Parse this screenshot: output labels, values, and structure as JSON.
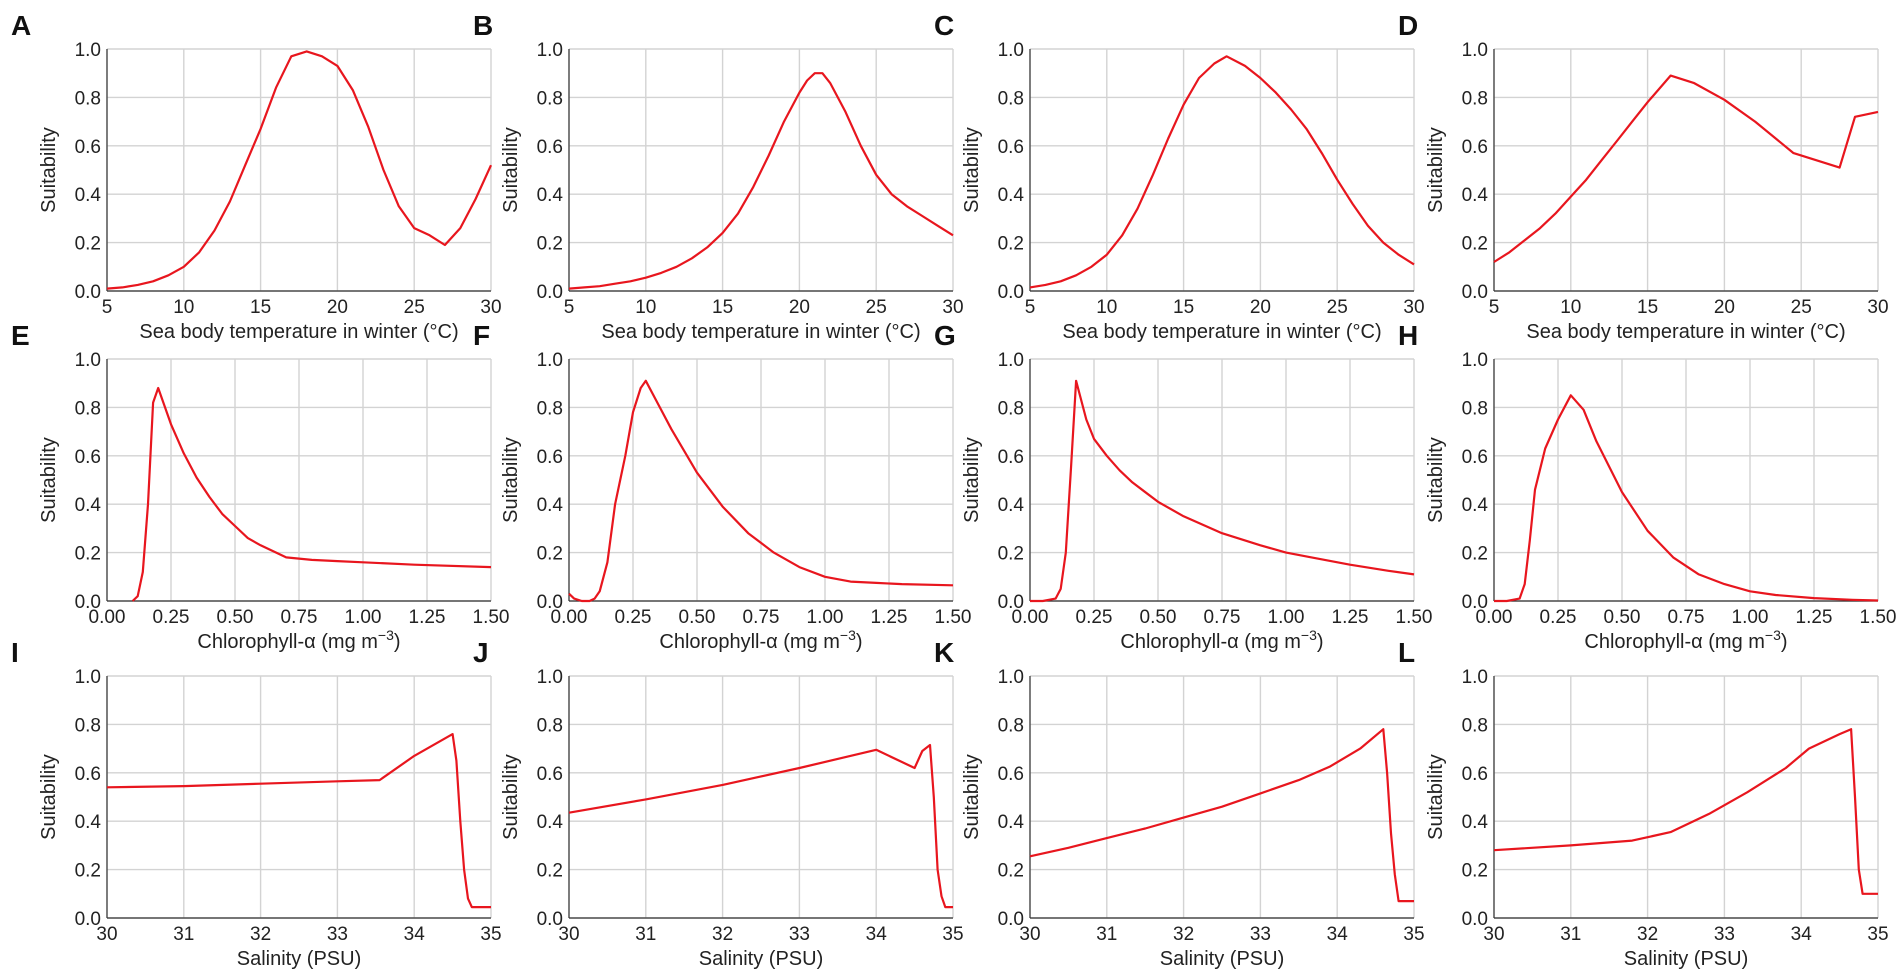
{
  "colors": {
    "curve": "#e8161e",
    "grid": "#d3d3d3",
    "axis": "#333333",
    "text": "#222222"
  },
  "chart_data": [
    {
      "panel": "A",
      "type": "line",
      "xlabel": "Sea body temperature in winter (°C)",
      "ylabel": "Suitability",
      "xlim": [
        5,
        30
      ],
      "ylim": [
        0,
        1
      ],
      "xticks": [
        5,
        10,
        15,
        20,
        25,
        30
      ],
      "xtick_labels": [
        "5",
        "10",
        "15",
        "20",
        "25",
        "30"
      ],
      "yticks": [
        0,
        0.2,
        0.4,
        0.6,
        0.8,
        1
      ],
      "ytick_labels": [
        "0.0",
        "0.2",
        "0.4",
        "0.6",
        "0.8",
        "1.0"
      ],
      "x": [
        5,
        6,
        7,
        8,
        9,
        10,
        11,
        12,
        13,
        14,
        15,
        16,
        17,
        18,
        19,
        20,
        21,
        22,
        23,
        24,
        25,
        26,
        27,
        28,
        29,
        30
      ],
      "y": [
        0.01,
        0.015,
        0.025,
        0.04,
        0.065,
        0.1,
        0.16,
        0.25,
        0.37,
        0.52,
        0.67,
        0.84,
        0.97,
        0.99,
        0.97,
        0.93,
        0.83,
        0.68,
        0.5,
        0.35,
        0.26,
        0.23,
        0.19,
        0.26,
        0.38,
        0.52
      ]
    },
    {
      "panel": "B",
      "type": "line",
      "xlabel": "Sea body temperature in winter (°C)",
      "ylabel": "Suitability",
      "xlim": [
        5,
        30
      ],
      "ylim": [
        0,
        1
      ],
      "xticks": [
        5,
        10,
        15,
        20,
        25,
        30
      ],
      "xtick_labels": [
        "5",
        "10",
        "15",
        "20",
        "25",
        "30"
      ],
      "yticks": [
        0,
        0.2,
        0.4,
        0.6,
        0.8,
        1
      ],
      "ytick_labels": [
        "0.0",
        "0.2",
        "0.4",
        "0.6",
        "0.8",
        "1.0"
      ],
      "x": [
        5,
        6,
        7,
        8,
        9,
        10,
        11,
        12,
        13,
        14,
        15,
        16,
        17,
        18,
        19,
        20,
        20.5,
        21,
        21.5,
        22,
        23,
        24,
        25,
        26,
        27,
        28,
        29,
        30
      ],
      "y": [
        0.01,
        0.015,
        0.02,
        0.03,
        0.04,
        0.055,
        0.075,
        0.1,
        0.135,
        0.18,
        0.24,
        0.32,
        0.43,
        0.56,
        0.7,
        0.82,
        0.87,
        0.9,
        0.9,
        0.86,
        0.74,
        0.6,
        0.48,
        0.4,
        0.35,
        0.31,
        0.27,
        0.23
      ]
    },
    {
      "panel": "C",
      "type": "line",
      "xlabel": "Sea body temperature in winter (°C)",
      "ylabel": "Suitability",
      "xlim": [
        5,
        30
      ],
      "ylim": [
        0,
        1
      ],
      "xticks": [
        5,
        10,
        15,
        20,
        25,
        30
      ],
      "xtick_labels": [
        "5",
        "10",
        "15",
        "20",
        "25",
        "30"
      ],
      "yticks": [
        0,
        0.2,
        0.4,
        0.6,
        0.8,
        1
      ],
      "ytick_labels": [
        "0.0",
        "0.2",
        "0.4",
        "0.6",
        "0.8",
        "1.0"
      ],
      "x": [
        5,
        6,
        7,
        8,
        9,
        10,
        11,
        12,
        13,
        14,
        15,
        16,
        17,
        17.8,
        19,
        20,
        21,
        22,
        23,
        24,
        25,
        26,
        27,
        28,
        29,
        30
      ],
      "y": [
        0.015,
        0.025,
        0.04,
        0.065,
        0.1,
        0.15,
        0.23,
        0.34,
        0.48,
        0.63,
        0.77,
        0.88,
        0.94,
        0.97,
        0.93,
        0.88,
        0.82,
        0.75,
        0.67,
        0.57,
        0.46,
        0.36,
        0.27,
        0.2,
        0.15,
        0.11
      ]
    },
    {
      "panel": "D",
      "type": "line",
      "xlabel": "Sea body temperature in winter (°C)",
      "ylabel": "Suitability",
      "xlim": [
        5,
        30
      ],
      "ylim": [
        0,
        1
      ],
      "xticks": [
        5,
        10,
        15,
        20,
        25,
        30
      ],
      "xtick_labels": [
        "5",
        "10",
        "15",
        "20",
        "25",
        "30"
      ],
      "yticks": [
        0,
        0.2,
        0.4,
        0.6,
        0.8,
        1
      ],
      "ytick_labels": [
        "0.0",
        "0.2",
        "0.4",
        "0.6",
        "0.8",
        "1.0"
      ],
      "x": [
        5,
        6,
        7,
        8,
        9,
        10,
        11,
        12,
        13,
        14,
        15,
        16.5,
        18,
        20,
        22,
        24.5,
        27.5,
        28.5,
        30
      ],
      "y": [
        0.12,
        0.16,
        0.21,
        0.26,
        0.32,
        0.39,
        0.46,
        0.54,
        0.62,
        0.7,
        0.78,
        0.89,
        0.86,
        0.79,
        0.7,
        0.57,
        0.51,
        0.72,
        0.74
      ]
    },
    {
      "panel": "E",
      "type": "line",
      "xlabel": "Chlorophyll-α (mg m",
      "xlabel_sup": "−3",
      "xlabel_tail": ")",
      "ylabel": "Suitability",
      "xlim": [
        0,
        1.5
      ],
      "ylim": [
        0,
        1
      ],
      "xticks": [
        0,
        0.25,
        0.5,
        0.75,
        1,
        1.25,
        1.5
      ],
      "xtick_labels": [
        "0.00",
        "0.25",
        "0.50",
        "0.75",
        "1.00",
        "1.25",
        "1.50"
      ],
      "yticks": [
        0,
        0.2,
        0.4,
        0.6,
        0.8,
        1
      ],
      "ytick_labels": [
        "0.0",
        "0.2",
        "0.4",
        "0.6",
        "0.8",
        "1.0"
      ],
      "x": [
        0.1,
        0.12,
        0.14,
        0.16,
        0.18,
        0.2,
        0.25,
        0.3,
        0.35,
        0.4,
        0.45,
        0.5,
        0.55,
        0.6,
        0.7,
        0.8,
        0.9,
        1.0,
        1.2,
        1.5
      ],
      "y": [
        0.0,
        0.02,
        0.12,
        0.4,
        0.82,
        0.88,
        0.73,
        0.61,
        0.51,
        0.43,
        0.36,
        0.31,
        0.26,
        0.23,
        0.18,
        0.17,
        0.165,
        0.16,
        0.15,
        0.14
      ]
    },
    {
      "panel": "F",
      "type": "line",
      "xlabel": "Chlorophyll-α (mg m",
      "xlabel_sup": "−3",
      "xlabel_tail": ")",
      "ylabel": "Suitability",
      "xlim": [
        0,
        1.5
      ],
      "ylim": [
        0,
        1
      ],
      "xticks": [
        0,
        0.25,
        0.5,
        0.75,
        1,
        1.25,
        1.5
      ],
      "xtick_labels": [
        "0.00",
        "0.25",
        "0.50",
        "0.75",
        "1.00",
        "1.25",
        "1.50"
      ],
      "yticks": [
        0,
        0.2,
        0.4,
        0.6,
        0.8,
        1
      ],
      "ytick_labels": [
        "0.0",
        "0.2",
        "0.4",
        "0.6",
        "0.8",
        "1.0"
      ],
      "x": [
        0,
        0.02,
        0.05,
        0.08,
        0.1,
        0.12,
        0.15,
        0.18,
        0.2,
        0.22,
        0.25,
        0.28,
        0.3,
        0.35,
        0.4,
        0.5,
        0.6,
        0.7,
        0.8,
        0.9,
        1.0,
        1.1,
        1.2,
        1.3,
        1.5
      ],
      "y": [
        0.03,
        0.01,
        0.0,
        0.0,
        0.01,
        0.04,
        0.16,
        0.4,
        0.5,
        0.6,
        0.78,
        0.88,
        0.91,
        0.81,
        0.71,
        0.53,
        0.39,
        0.28,
        0.2,
        0.14,
        0.1,
        0.08,
        0.075,
        0.07,
        0.065
      ]
    },
    {
      "panel": "G",
      "type": "line",
      "xlabel": "Chlorophyll-α (mg m",
      "xlabel_sup": "−3",
      "xlabel_tail": ")",
      "ylabel": "Suitability",
      "xlim": [
        0,
        1.5
      ],
      "ylim": [
        0,
        1
      ],
      "xticks": [
        0,
        0.25,
        0.5,
        0.75,
        1,
        1.25,
        1.5
      ],
      "xtick_labels": [
        "0.00",
        "0.25",
        "0.50",
        "0.75",
        "1.00",
        "1.25",
        "1.50"
      ],
      "yticks": [
        0,
        0.2,
        0.4,
        0.6,
        0.8,
        1
      ],
      "ytick_labels": [
        "0.0",
        "0.2",
        "0.4",
        "0.6",
        "0.8",
        "1.0"
      ],
      "x": [
        0,
        0.05,
        0.1,
        0.12,
        0.14,
        0.16,
        0.18,
        0.2,
        0.22,
        0.25,
        0.3,
        0.35,
        0.4,
        0.5,
        0.6,
        0.75,
        0.9,
        1.0,
        1.1,
        1.25,
        1.4,
        1.5
      ],
      "y": [
        0.0,
        0.0,
        0.01,
        0.05,
        0.2,
        0.55,
        0.91,
        0.83,
        0.75,
        0.67,
        0.6,
        0.54,
        0.49,
        0.41,
        0.35,
        0.28,
        0.23,
        0.2,
        0.18,
        0.15,
        0.125,
        0.11
      ]
    },
    {
      "panel": "H",
      "type": "line",
      "xlabel": "Chlorophyll-α (mg m",
      "xlabel_sup": "−3",
      "xlabel_tail": ")",
      "ylabel": "Suitability",
      "xlim": [
        0,
        1.5
      ],
      "ylim": [
        0,
        1
      ],
      "xticks": [
        0,
        0.25,
        0.5,
        0.75,
        1,
        1.25,
        1.5
      ],
      "xtick_labels": [
        "0.00",
        "0.25",
        "0.50",
        "0.75",
        "1.00",
        "1.25",
        "1.50"
      ],
      "yticks": [
        0,
        0.2,
        0.4,
        0.6,
        0.8,
        1
      ],
      "ytick_labels": [
        "0.0",
        "0.2",
        "0.4",
        "0.6",
        "0.8",
        "1.0"
      ],
      "x": [
        0,
        0.05,
        0.1,
        0.12,
        0.14,
        0.16,
        0.2,
        0.25,
        0.3,
        0.35,
        0.4,
        0.5,
        0.6,
        0.7,
        0.8,
        0.9,
        1.0,
        1.1,
        1.25,
        1.4,
        1.5
      ],
      "y": [
        0.0,
        0.0,
        0.01,
        0.07,
        0.25,
        0.46,
        0.63,
        0.75,
        0.85,
        0.79,
        0.66,
        0.45,
        0.29,
        0.18,
        0.11,
        0.07,
        0.04,
        0.025,
        0.012,
        0.005,
        0.002
      ]
    },
    {
      "panel": "I",
      "type": "line",
      "xlabel": "Salinity (PSU)",
      "ylabel": "Suitability",
      "xlim": [
        30,
        35
      ],
      "ylim": [
        0,
        1
      ],
      "xticks": [
        30,
        31,
        32,
        33,
        34,
        35
      ],
      "xtick_labels": [
        "30",
        "31",
        "32",
        "33",
        "34",
        "35"
      ],
      "yticks": [
        0,
        0.2,
        0.4,
        0.6,
        0.8,
        1
      ],
      "ytick_labels": [
        "0.0",
        "0.2",
        "0.4",
        "0.6",
        "0.8",
        "1.0"
      ],
      "x": [
        30,
        31,
        32,
        33,
        33.55,
        34,
        34.5,
        34.55,
        34.6,
        34.65,
        34.7,
        34.75,
        35
      ],
      "y": [
        0.54,
        0.545,
        0.555,
        0.565,
        0.57,
        0.67,
        0.76,
        0.65,
        0.4,
        0.2,
        0.08,
        0.045,
        0.045
      ]
    },
    {
      "panel": "J",
      "type": "line",
      "xlabel": "Salinity (PSU)",
      "ylabel": "Suitability",
      "xlim": [
        30,
        35
      ],
      "ylim": [
        0,
        1
      ],
      "xticks": [
        30,
        31,
        32,
        33,
        34,
        35
      ],
      "xtick_labels": [
        "30",
        "31",
        "32",
        "33",
        "34",
        "35"
      ],
      "yticks": [
        0,
        0.2,
        0.4,
        0.6,
        0.8,
        1
      ],
      "ytick_labels": [
        "0.0",
        "0.2",
        "0.4",
        "0.6",
        "0.8",
        "1.0"
      ],
      "x": [
        30,
        31,
        32,
        33,
        34,
        34.5,
        34.6,
        34.7,
        34.75,
        34.8,
        34.85,
        34.9,
        35
      ],
      "y": [
        0.435,
        0.49,
        0.55,
        0.62,
        0.695,
        0.62,
        0.69,
        0.715,
        0.5,
        0.2,
        0.09,
        0.045,
        0.045
      ]
    },
    {
      "panel": "K",
      "type": "line",
      "xlabel": "Salinity (PSU)",
      "ylabel": "Suitability",
      "xlim": [
        30,
        35
      ],
      "ylim": [
        0,
        1
      ],
      "xticks": [
        30,
        31,
        32,
        33,
        34,
        35
      ],
      "xtick_labels": [
        "30",
        "31",
        "32",
        "33",
        "34",
        "35"
      ],
      "yticks": [
        0,
        0.2,
        0.4,
        0.6,
        0.8,
        1
      ],
      "ytick_labels": [
        "0.0",
        "0.2",
        "0.4",
        "0.6",
        "0.8",
        "1.0"
      ],
      "x": [
        30,
        30.5,
        31,
        31.5,
        32,
        32.5,
        33,
        33.5,
        33.9,
        34.3,
        34.6,
        34.65,
        34.7,
        34.75,
        34.8,
        35
      ],
      "y": [
        0.255,
        0.29,
        0.33,
        0.37,
        0.415,
        0.46,
        0.515,
        0.57,
        0.625,
        0.7,
        0.78,
        0.6,
        0.35,
        0.18,
        0.07,
        0.07
      ]
    },
    {
      "panel": "L",
      "type": "line",
      "xlabel": "Salinity (PSU)",
      "ylabel": "Suitability",
      "xlim": [
        30,
        35
      ],
      "ylim": [
        0,
        1
      ],
      "xticks": [
        30,
        31,
        32,
        33,
        34,
        35
      ],
      "xtick_labels": [
        "30",
        "31",
        "32",
        "33",
        "34",
        "35"
      ],
      "yticks": [
        0,
        0.2,
        0.4,
        0.6,
        0.8,
        1
      ],
      "ytick_labels": [
        "0.0",
        "0.2",
        "0.4",
        "0.6",
        "0.8",
        "1.0"
      ],
      "x": [
        30,
        31,
        31.8,
        32.3,
        32.8,
        33.3,
        33.8,
        34.1,
        34.5,
        34.65,
        34.7,
        34.75,
        34.8,
        35
      ],
      "y": [
        0.28,
        0.3,
        0.32,
        0.355,
        0.43,
        0.52,
        0.62,
        0.7,
        0.76,
        0.78,
        0.5,
        0.2,
        0.1,
        0.1
      ]
    }
  ]
}
